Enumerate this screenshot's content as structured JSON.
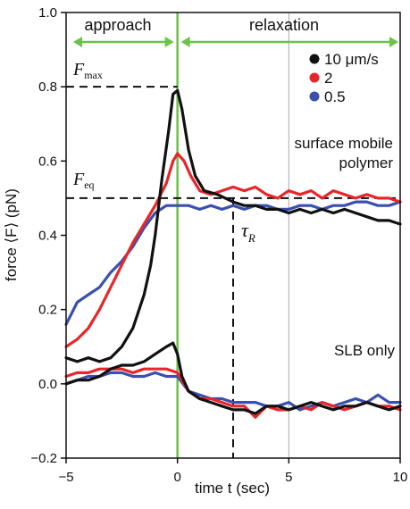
{
  "chart_data": {
    "type": "line",
    "xlabel": "time t (sec)",
    "ylabel": "force ⟨F⟩ (pN)",
    "xlim": [
      -5,
      10
    ],
    "ylim": [
      -0.2,
      1.0
    ],
    "xticks": [
      -5,
      0,
      5,
      10
    ],
    "yticks": [
      -0.2,
      0.0,
      0.2,
      0.4,
      0.6,
      0.8,
      1.0
    ],
    "ytick_labels": [
      "−0.2",
      "0.0",
      "0.2",
      "0.4",
      "0.6",
      "0.8",
      "1.0"
    ],
    "xtick_labels": [
      "−5",
      "0",
      "5",
      "10"
    ],
    "grid": false,
    "legend_position": "top-right",
    "phase_labels": {
      "approach": "approach",
      "relaxation": "relaxation"
    },
    "annotations": {
      "fmax_label_main": "F",
      "fmax_label_sub": "max",
      "feq_label_main": "F",
      "feq_label_sub": "eq",
      "tau_label_main": "τ",
      "tau_label_sub": "R",
      "surface_label_1": "surface mobile",
      "surface_label_2": "polymer",
      "slb_label": "SLB only"
    },
    "reference_lines": {
      "fmax": 0.8,
      "feq": 0.5,
      "tau_x": 2.5,
      "zero_x": 0,
      "five_x": 5
    },
    "series": [
      {
        "name": "10 μm/s",
        "group": "surface mobile polymer",
        "color": "#111111",
        "x": [
          -5,
          -4.5,
          -4,
          -3.5,
          -3,
          -2.5,
          -2,
          -1.5,
          -1.2,
          -1,
          -0.7,
          -0.4,
          -0.2,
          0,
          0.2,
          0.5,
          0.8,
          1.2,
          1.8,
          2.5,
          3,
          3.5,
          4,
          4.5,
          5,
          5.5,
          6,
          6.5,
          7,
          7.5,
          8,
          8.5,
          9,
          9.5,
          10
        ],
        "y": [
          0.07,
          0.06,
          0.07,
          0.06,
          0.07,
          0.1,
          0.15,
          0.24,
          0.32,
          0.4,
          0.55,
          0.68,
          0.78,
          0.79,
          0.74,
          0.63,
          0.56,
          0.52,
          0.51,
          0.49,
          0.48,
          0.48,
          0.47,
          0.47,
          0.46,
          0.47,
          0.46,
          0.47,
          0.46,
          0.47,
          0.46,
          0.45,
          0.44,
          0.44,
          0.43
        ]
      },
      {
        "name": "2",
        "group": "surface mobile polymer",
        "color": "#e8262a",
        "x": [
          -5,
          -4.5,
          -4,
          -3.5,
          -3,
          -2.5,
          -2,
          -1.5,
          -1,
          -0.5,
          -0.2,
          0,
          0.3,
          0.6,
          1,
          1.5,
          2,
          2.5,
          3,
          3.5,
          4,
          4.5,
          5,
          5.5,
          6,
          6.5,
          7,
          7.5,
          8,
          8.5,
          9,
          9.5,
          10
        ],
        "y": [
          0.1,
          0.12,
          0.15,
          0.2,
          0.26,
          0.32,
          0.38,
          0.43,
          0.48,
          0.54,
          0.6,
          0.62,
          0.6,
          0.56,
          0.52,
          0.51,
          0.52,
          0.53,
          0.52,
          0.53,
          0.51,
          0.5,
          0.52,
          0.51,
          0.52,
          0.5,
          0.52,
          0.51,
          0.5,
          0.51,
          0.5,
          0.5,
          0.49
        ]
      },
      {
        "name": "0.5",
        "group": "surface mobile polymer",
        "color": "#3a4fb0",
        "x": [
          -5,
          -4.5,
          -4,
          -3.5,
          -3,
          -2.5,
          -2,
          -1.5,
          -1,
          -0.5,
          0,
          0.5,
          1,
          1.5,
          2,
          2.5,
          3,
          3.5,
          4,
          4.5,
          5,
          5.5,
          6,
          6.5,
          7,
          7.5,
          8,
          8.5,
          9,
          9.5,
          10
        ],
        "y": [
          0.16,
          0.22,
          0.24,
          0.26,
          0.3,
          0.33,
          0.37,
          0.42,
          0.46,
          0.48,
          0.48,
          0.48,
          0.47,
          0.48,
          0.47,
          0.48,
          0.47,
          0.48,
          0.48,
          0.47,
          0.47,
          0.48,
          0.48,
          0.47,
          0.48,
          0.48,
          0.49,
          0.49,
          0.48,
          0.48,
          0.49
        ]
      },
      {
        "name": "10 μm/s (SLB)",
        "group": "SLB only",
        "color": "#111111",
        "x": [
          -5,
          -4.5,
          -4,
          -3.5,
          -3,
          -2.5,
          -2,
          -1.5,
          -1,
          -0.5,
          -0.2,
          0,
          0.2,
          0.5,
          1,
          1.5,
          2,
          2.5,
          3,
          3.5,
          4,
          4.5,
          5,
          5.5,
          6,
          6.5,
          7,
          7.5,
          8,
          8.5,
          9,
          9.5,
          10
        ],
        "y": [
          0.0,
          0.01,
          0.01,
          0.02,
          0.04,
          0.05,
          0.05,
          0.06,
          0.08,
          0.1,
          0.11,
          0.08,
          0.02,
          -0.02,
          -0.04,
          -0.05,
          -0.06,
          -0.07,
          -0.07,
          -0.08,
          -0.06,
          -0.06,
          -0.07,
          -0.06,
          -0.05,
          -0.06,
          -0.07,
          -0.06,
          -0.06,
          -0.05,
          -0.06,
          -0.07,
          -0.06
        ]
      },
      {
        "name": "2 (SLB)",
        "group": "SLB only",
        "color": "#e8262a",
        "x": [
          -5,
          -4.5,
          -4,
          -3.5,
          -3,
          -2.5,
          -2,
          -1.5,
          -1,
          -0.5,
          0,
          0.5,
          1,
          1.5,
          2,
          2.5,
          3,
          3.5,
          4,
          4.5,
          5,
          5.5,
          6,
          6.5,
          7,
          7.5,
          8,
          8.5,
          9,
          9.5,
          10
        ],
        "y": [
          0.02,
          0.03,
          0.03,
          0.04,
          0.04,
          0.04,
          0.03,
          0.04,
          0.04,
          0.04,
          0.03,
          -0.02,
          -0.04,
          -0.04,
          -0.05,
          -0.06,
          -0.06,
          -0.09,
          -0.06,
          -0.07,
          -0.07,
          -0.06,
          -0.07,
          -0.05,
          -0.06,
          -0.07,
          -0.06,
          -0.05,
          -0.06,
          -0.06,
          -0.07
        ]
      },
      {
        "name": "0.5 (SLB)",
        "group": "SLB only",
        "color": "#3a4fb0",
        "x": [
          -5,
          -4.5,
          -4,
          -3.5,
          -3,
          -2.5,
          -2,
          -1.5,
          -1,
          -0.5,
          0,
          0.5,
          1,
          1.5,
          2,
          2.5,
          3,
          3.5,
          4,
          4.5,
          5,
          5.5,
          6,
          6.5,
          7,
          7.5,
          8,
          8.5,
          9,
          9.5,
          10
        ],
        "y": [
          0.0,
          0.01,
          0.02,
          0.02,
          0.03,
          0.03,
          0.02,
          0.02,
          0.03,
          0.02,
          0.02,
          -0.02,
          -0.03,
          -0.04,
          -0.04,
          -0.05,
          -0.05,
          -0.05,
          -0.06,
          -0.06,
          -0.05,
          -0.07,
          -0.06,
          -0.05,
          -0.06,
          -0.05,
          -0.04,
          -0.05,
          -0.03,
          -0.05,
          -0.05
        ]
      }
    ],
    "legend": [
      {
        "label": "10 μm/s",
        "color": "#111111"
      },
      {
        "label": "2",
        "color": "#e8262a"
      },
      {
        "label": "0.5",
        "color": "#3a4fb0"
      }
    ],
    "colors": {
      "zero_line": "#6cc24a",
      "phase_arrow": "#6cc24a",
      "five_line": "#aaaaaa"
    }
  }
}
